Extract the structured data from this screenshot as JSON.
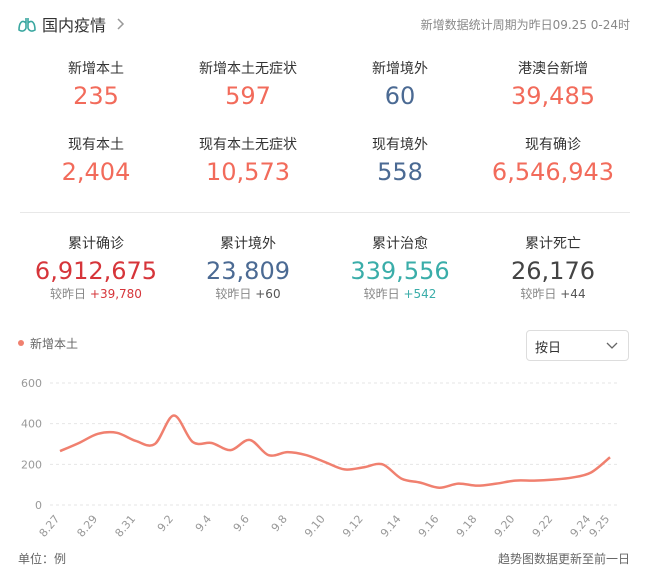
{
  "header": {
    "title": "国内疫情",
    "note": "新增数据统计周期为昨日09.25 0-24时"
  },
  "stats": [
    {
      "items": [
        {
          "label": "新增本土",
          "value": "235",
          "color": "#f26b5b"
        },
        {
          "label": "新增本土无症状",
          "value": "597",
          "color": "#f26b5b"
        },
        {
          "label": "新增境外",
          "value": "60",
          "color": "#4b6a93"
        },
        {
          "label": "港澳台新增",
          "value": "39,485",
          "color": "#f26b5b"
        }
      ]
    },
    {
      "items": [
        {
          "label": "现有本土",
          "value": "2,404",
          "color": "#f26b5b"
        },
        {
          "label": "现有本土无症状",
          "value": "10,573",
          "color": "#f26b5b"
        },
        {
          "label": "现有境外",
          "value": "558",
          "color": "#4b6a93"
        },
        {
          "label": "现有确诊",
          "value": "6,546,943",
          "color": "#f26b5b"
        }
      ]
    },
    {
      "items": [
        {
          "label": "累计确诊",
          "value": "6,912,675",
          "color": "#d6353a",
          "compare": "较昨日",
          "delta": "+39,780",
          "delta_color": "#d6353a"
        },
        {
          "label": "累计境外",
          "value": "23,809",
          "color": "#4b6a93",
          "compare": "较昨日",
          "delta": "+60",
          "delta_color": "#555555"
        },
        {
          "label": "累计治愈",
          "value": "339,556",
          "color": "#3aada9",
          "compare": "较昨日",
          "delta": "+542",
          "delta_color": "#3aada9"
        },
        {
          "label": "累计死亡",
          "value": "26,176",
          "color": "#444444",
          "compare": "较昨日",
          "delta": "+44",
          "delta_color": "#555555"
        }
      ]
    }
  ],
  "select": "按日",
  "footer": {
    "unit": "单位：例",
    "note": "趋势图数据更新至前一日"
  },
  "chart_data": {
    "type": "line",
    "categories": [
      "8.27",
      null,
      "8.29",
      null,
      "8.31",
      null,
      "9.2",
      null,
      "9.4",
      null,
      "9.6",
      null,
      "9.8",
      null,
      "9.10",
      null,
      "9.12",
      null,
      "9.14",
      null,
      "9.16",
      null,
      "9.18",
      null,
      "9.20",
      null,
      "9.22",
      null,
      "9.24",
      "9.25"
    ],
    "series": [
      {
        "name": "新增本土",
        "color": "#f0806f",
        "values": [
          265,
          305,
          350,
          355,
          315,
          300,
          440,
          310,
          305,
          270,
          320,
          245,
          260,
          245,
          210,
          175,
          185,
          200,
          130,
          110,
          85,
          105,
          95,
          105,
          120,
          120,
          125,
          135,
          160,
          235
        ]
      }
    ],
    "ylim": [
      0,
      600
    ],
    "yticks": [
      0,
      200,
      400,
      600
    ],
    "grid": true
  }
}
